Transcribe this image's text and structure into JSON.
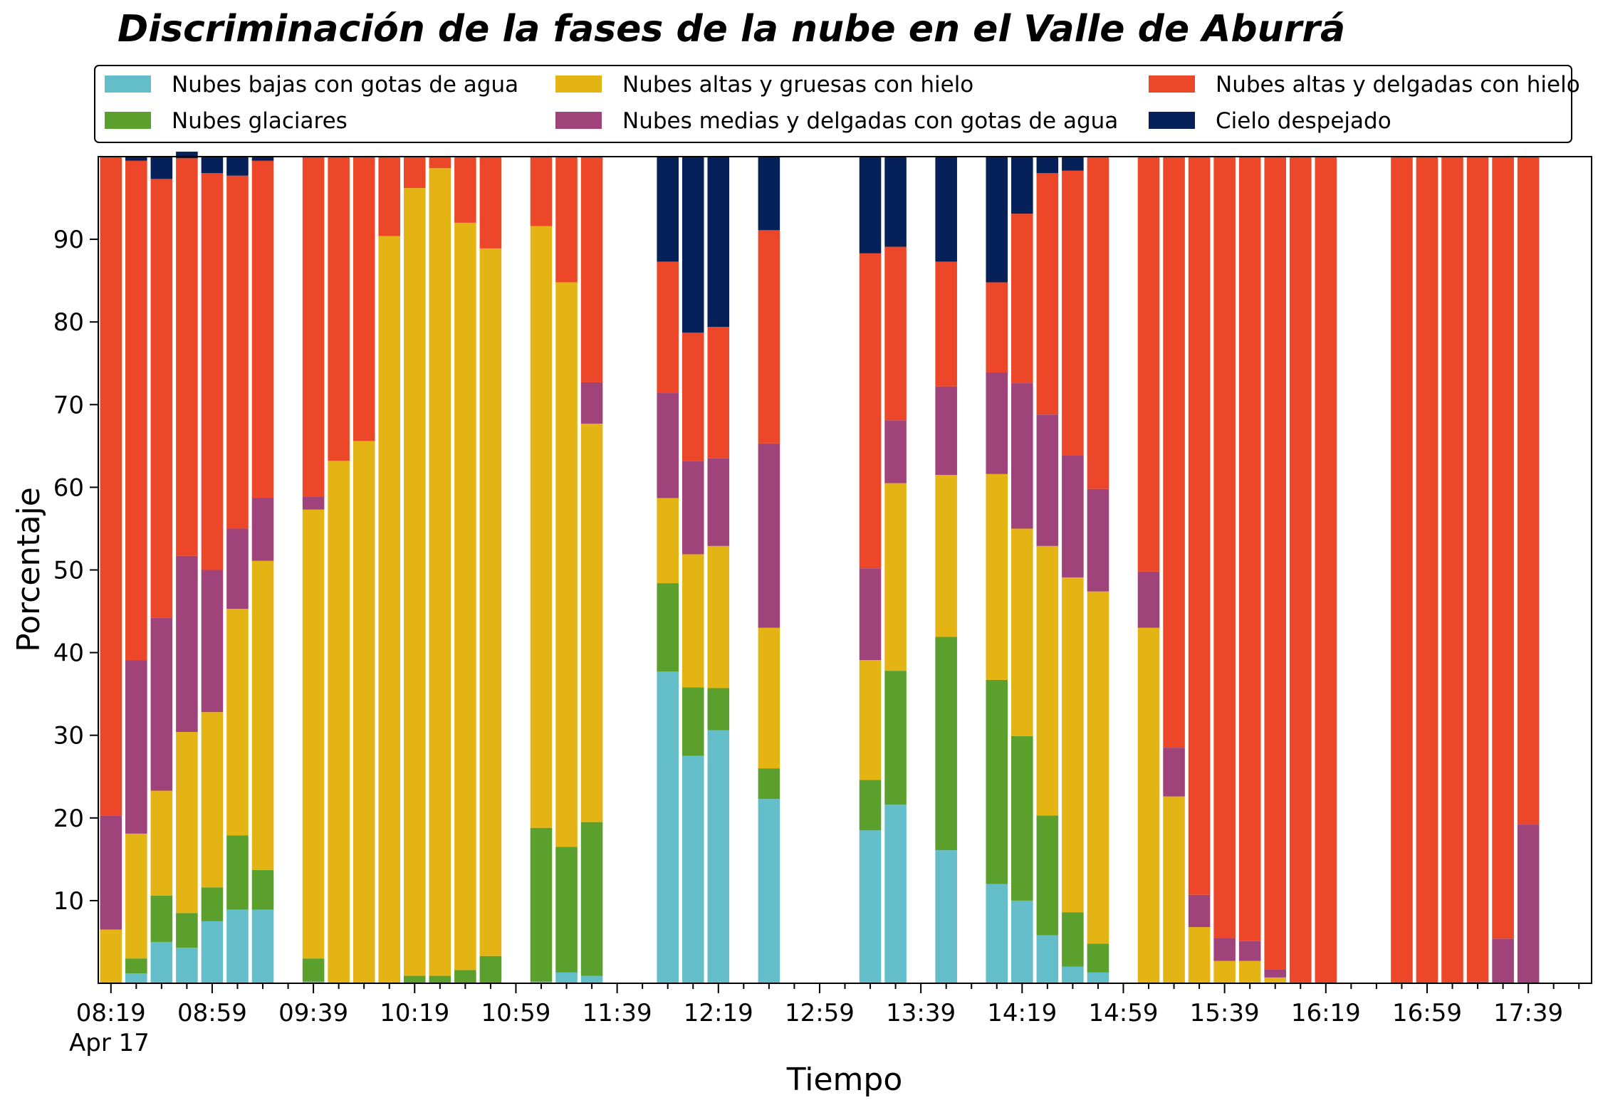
{
  "chart_data": {
    "type": "bar",
    "stacked": true,
    "title": "Discriminación de la fases de la nube en el Valle de Aburrá",
    "xlabel": "Tiempo",
    "ylabel": "Porcentaje",
    "ylim": [
      0,
      100
    ],
    "yticks": [
      10,
      20,
      30,
      40,
      50,
      60,
      70,
      80,
      90
    ],
    "xlim": [
      0,
      59
    ],
    "x_tick_labels": [
      {
        "x": 0,
        "label": "08:19"
      },
      {
        "x": 4,
        "label": "08:59"
      },
      {
        "x": 8,
        "label": "09:39"
      },
      {
        "x": 12,
        "label": "10:19"
      },
      {
        "x": 16,
        "label": "10:59"
      },
      {
        "x": 20,
        "label": "11:39"
      },
      {
        "x": 24,
        "label": "12:19"
      },
      {
        "x": 28,
        "label": "12:59"
      },
      {
        "x": 32,
        "label": "13:39"
      },
      {
        "x": 36,
        "label": "14:19"
      },
      {
        "x": 40,
        "label": "14:59"
      },
      {
        "x": 44,
        "label": "15:39"
      },
      {
        "x": 48,
        "label": "16:19"
      },
      {
        "x": 52,
        "label": "16:59"
      },
      {
        "x": 56,
        "label": "17:39"
      }
    ],
    "x_date_label": "Apr 17",
    "x_minor_step": 1,
    "grid": false,
    "legend_position": "top",
    "series": [
      {
        "name": "Nubes bajas con gotas de agua",
        "color": "#64bec9"
      },
      {
        "name": "Nubes glaciares",
        "color": "#5b9f2c"
      },
      {
        "name": "Nubes altas y gruesas con hielo",
        "color": "#e3b414"
      },
      {
        "name": "Nubes medias y delgadas con gotas de agua",
        "color": "#a0437a"
      },
      {
        "name": "Nubes altas y delgadas con hielo",
        "color": "#ed4729"
      },
      {
        "name": "Cielo despejado",
        "color": "#06205a"
      }
    ],
    "bars": [
      {
        "x": 0,
        "values": [
          0,
          0,
          6.5,
          13.8,
          79.7,
          0
        ]
      },
      {
        "x": 1,
        "values": [
          1.2,
          1.8,
          15.1,
          21.0,
          60.4,
          0.5
        ]
      },
      {
        "x": 2,
        "values": [
          5.0,
          5.6,
          12.7,
          20.9,
          53.1,
          2.7
        ]
      },
      {
        "x": 3,
        "values": [
          4.3,
          4.2,
          21.9,
          21.3,
          48.1,
          0.8
        ]
      },
      {
        "x": 4,
        "values": [
          7.5,
          4.1,
          21.2,
          17.2,
          48.0,
          2.0
        ]
      },
      {
        "x": 5,
        "values": [
          8.9,
          9.0,
          27.4,
          9.7,
          42.7,
          2.3
        ]
      },
      {
        "x": 6,
        "values": [
          8.9,
          4.8,
          37.4,
          7.6,
          40.8,
          0.5
        ]
      },
      {
        "x": 8,
        "values": [
          0.2,
          2.8,
          54.3,
          1.6,
          41.1,
          0
        ]
      },
      {
        "x": 9,
        "values": [
          0,
          0,
          63.2,
          0,
          36.8,
          0
        ]
      },
      {
        "x": 10,
        "values": [
          0,
          0,
          65.6,
          0,
          34.4,
          0
        ]
      },
      {
        "x": 11,
        "values": [
          0,
          0,
          90.4,
          0,
          9.6,
          0
        ]
      },
      {
        "x": 12,
        "values": [
          0,
          0.9,
          95.3,
          0,
          3.8,
          0
        ]
      },
      {
        "x": 13,
        "values": [
          0,
          0.9,
          97.7,
          0,
          1.4,
          0
        ]
      },
      {
        "x": 14,
        "values": [
          0,
          1.6,
          90.4,
          0,
          8.0,
          0
        ]
      },
      {
        "x": 15,
        "values": [
          0,
          3.3,
          85.6,
          0,
          11.1,
          0
        ]
      },
      {
        "x": 17,
        "values": [
          0.2,
          18.6,
          72.8,
          0,
          8.4,
          0
        ]
      },
      {
        "x": 18,
        "values": [
          1.3,
          15.2,
          68.3,
          0,
          15.2,
          0
        ]
      },
      {
        "x": 19,
        "values": [
          0.9,
          18.6,
          48.2,
          5.0,
          27.3,
          0
        ]
      },
      {
        "x": 22,
        "values": [
          37.7,
          10.7,
          10.3,
          12.7,
          15.9,
          12.7
        ]
      },
      {
        "x": 23,
        "values": [
          27.5,
          8.3,
          16.1,
          11.3,
          15.5,
          21.3
        ]
      },
      {
        "x": 24,
        "values": [
          30.6,
          5.1,
          17.2,
          10.6,
          15.9,
          20.6
        ]
      },
      {
        "x": 26,
        "values": [
          22.3,
          3.7,
          17.0,
          22.3,
          25.8,
          8.9
        ]
      },
      {
        "x": 30,
        "values": [
          18.5,
          6.1,
          14.5,
          11.1,
          38.1,
          11.7
        ]
      },
      {
        "x": 31,
        "values": [
          21.6,
          16.2,
          22.7,
          7.6,
          21.0,
          10.9
        ]
      },
      {
        "x": 33,
        "values": [
          16.1,
          25.8,
          19.6,
          10.7,
          15.1,
          12.7
        ]
      },
      {
        "x": 35,
        "values": [
          12.0,
          24.7,
          24.9,
          12.3,
          10.9,
          15.2
        ]
      },
      {
        "x": 36,
        "values": [
          10.0,
          19.9,
          25.1,
          17.6,
          20.5,
          6.9
        ]
      },
      {
        "x": 37,
        "values": [
          5.8,
          14.5,
          32.6,
          15.9,
          29.2,
          2.0
        ]
      },
      {
        "x": 38,
        "values": [
          2.0,
          6.6,
          40.5,
          14.8,
          34.4,
          1.7
        ]
      },
      {
        "x": 39,
        "values": [
          1.3,
          3.5,
          42.6,
          12.4,
          40.1,
          0.1
        ]
      },
      {
        "x": 41,
        "values": [
          0,
          0,
          43.0,
          6.8,
          50.2,
          0
        ]
      },
      {
        "x": 42,
        "values": [
          0,
          0,
          22.6,
          5.9,
          71.5,
          0
        ]
      },
      {
        "x": 43,
        "values": [
          0,
          0,
          6.8,
          3.9,
          89.3,
          0
        ]
      },
      {
        "x": 44,
        "values": [
          0,
          0,
          2.7,
          2.8,
          94.5,
          0
        ]
      },
      {
        "x": 45,
        "values": [
          0,
          0,
          2.7,
          2.4,
          94.9,
          0
        ]
      },
      {
        "x": 46,
        "values": [
          0,
          0,
          0.7,
          1.0,
          98.3,
          0
        ]
      },
      {
        "x": 47,
        "values": [
          0,
          0,
          0,
          0.1,
          99.9,
          0
        ]
      },
      {
        "x": 48,
        "values": [
          0,
          0,
          0,
          0,
          100,
          0
        ]
      },
      {
        "x": 51,
        "values": [
          0,
          0,
          0,
          0,
          100,
          0
        ]
      },
      {
        "x": 52,
        "values": [
          0,
          0,
          0,
          0,
          100,
          0
        ]
      },
      {
        "x": 53,
        "values": [
          0,
          0,
          0,
          0,
          100,
          0
        ]
      },
      {
        "x": 54,
        "values": [
          0,
          0,
          0,
          0.2,
          99.8,
          0
        ]
      },
      {
        "x": 55,
        "values": [
          0,
          0,
          0,
          5.4,
          94.6,
          0
        ]
      },
      {
        "x": 56,
        "values": [
          0,
          0,
          0,
          19.2,
          80.8,
          0
        ]
      }
    ]
  }
}
